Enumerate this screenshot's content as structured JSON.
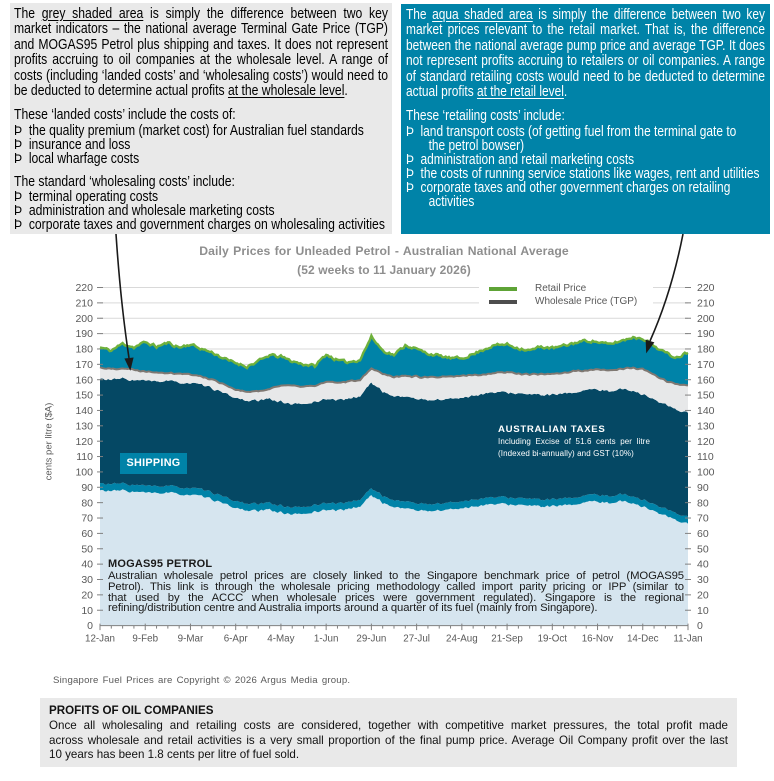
{
  "boxes": {
    "left": {
      "bullet_char": "Þ",
      "lines": [
        {
          "t": "The grey shaded area is simply the difference between two key",
          "j": 1,
          "u": [
            "grey shaded area"
          ]
        },
        {
          "t": "market indicators – the national average Terminal Gate Price (TGP)",
          "j": 1
        },
        {
          "t": "and MOGAS95 Petrol plus shipping and taxes. It does not represent",
          "j": 1
        },
        {
          "t": "profits accruing to oil companies at the wholesale level. A range of",
          "j": 1
        },
        {
          "t": "costs (including ‘landed costs’ and ‘wholesaling costs’) would need to",
          "j": 1
        },
        {
          "t": "be deducted to determine actual profits at the wholesale level.",
          "u": [
            "at the wholesale level"
          ]
        },
        {
          "gap": 1
        },
        {
          "t": "These ‘landed costs’ include the costs of:"
        },
        {
          "t": "the quality premium (market cost) for Australian fuel standards",
          "b": 1
        },
        {
          "t": "insurance and loss",
          "b": 1
        },
        {
          "t": "local wharfage costs",
          "b": 1
        },
        {
          "gap": 1
        },
        {
          "t": "The standard ‘wholesaling costs’ include:"
        },
        {
          "t": "terminal operating costs",
          "b": 1
        },
        {
          "t": "administration and wholesale marketing costs",
          "b": 1
        },
        {
          "t": "corporate taxes and government charges on wholesaling activities",
          "b": 1
        }
      ]
    },
    "right": {
      "bullet_char": "Þ",
      "lines": [
        {
          "t": "The aqua shaded area is simply the difference between two key",
          "j": 1,
          "u": [
            "aqua shaded area"
          ]
        },
        {
          "t": "market prices relevant to the retail market. That is, the difference",
          "j": 1
        },
        {
          "t": "between the national average pump price and average TGP. It does",
          "j": 1
        },
        {
          "t": "not represent profits accruing to retailers or oil companies. A range",
          "j": 1
        },
        {
          "t": "of standard retailing costs would need to be deducted to determine",
          "j": 1
        },
        {
          "t": "actual profits at the retail level.",
          "u": [
            "at the retail level"
          ]
        },
        {
          "gap": 1
        },
        {
          "t": "These ‘retailing costs’ include:"
        },
        {
          "t": "land transport costs (of getting fuel from the terminal gate to",
          "b": 1
        },
        {
          "t": "the petrol bowser)",
          "c": 1
        },
        {
          "t": "administration and retail marketing costs",
          "b": 1
        },
        {
          "t": "the costs of running service stations like wages, rent and utilities",
          "b": 1
        },
        {
          "t": "corporate taxes and other government charges on retailing",
          "b": 1
        },
        {
          "t": "activities",
          "c": 1
        }
      ]
    },
    "bottom": {
      "heading": "PROFITS OF OIL COMPANIES",
      "lines": [
        {
          "t": "Once all wholesaling and retailing costs are considered, together with competitive market pressures, the total profit made",
          "j": 1
        },
        {
          "t": "across wholesale and retail activities is a very small proportion of the final pump price. Average Oil Company profit over the last",
          "j": 1
        },
        {
          "t": "10 years has been 1.8 cents per litre of fuel sold."
        }
      ]
    }
  },
  "chart": {
    "title": "Daily Prices for Unleaded Petrol - Australian National Average",
    "subtitle": "(52 weeks to 11 January 2026)",
    "y_axis_label": "cents per litre ($A)",
    "legend": [
      {
        "label": "Retail Price",
        "color": "#5ea336"
      },
      {
        "label": "Wholesale Price (TGP)",
        "color": "#4d4d4d"
      }
    ],
    "annotations": {
      "shipping": "SHIPPING",
      "taxes_title": "AUSTRALIAN TAXES",
      "taxes_line2": "Including Excise of 51.6 cents per litre",
      "taxes_line3": "(Indexed bi-annually) and GST (10%)",
      "mogas_heading": "MOGAS95 PETROL",
      "mogas_lines": [
        {
          "t": "Australian wholesale petrol prices are closely linked to the Singapore benchmark price of petrol (MOGAS95",
          "j": 1
        },
        {
          "t": "Petrol). This link is through the wholesale pricing methodology called import parity pricing or IPP (similar to",
          "j": 1
        },
        {
          "t": "that used by the ACCC when wholesale prices were government regulated). Singapore is the regional",
          "j": 1
        },
        {
          "t": "refining/distribution centre and Australia imports around a quarter of its fuel (mainly from Singapore)."
        }
      ]
    },
    "copyright": "Singapore Fuel Prices are Copyright © 2026 Argus Media group."
  },
  "chart_data": {
    "type": "area",
    "title": "Daily Prices for Unleaded Petrol - Australian National Average",
    "subtitle": "(52 weeks to 11 January 2026)",
    "ylabel": "cents per litre ($A)",
    "ylim": [
      0,
      220
    ],
    "y_tick_step": 10,
    "x_tick_labels": [
      "12-Jan",
      "9-Feb",
      "9-Mar",
      "6-Apr",
      "4-May",
      "1-Jun",
      "29-Jun",
      "27-Jul",
      "24-Aug",
      "21-Sep",
      "19-Oct",
      "16-Nov",
      "14-Dec",
      "11-Jan"
    ],
    "x_days_per_tick": 28,
    "total_days": 364,
    "grid": true,
    "legend_position": "top-right-inside",
    "excise_cents_per_litre": 51.6,
    "gst_rate": 0.1,
    "shipping_width_cents": 4.5,
    "y_tick_labels": [
      0,
      10,
      20,
      30,
      40,
      50,
      60,
      70,
      80,
      90,
      100,
      110,
      120,
      130,
      140,
      150,
      160,
      170,
      180,
      190,
      200,
      210,
      220
    ],
    "series_weekly": {
      "note": "weekly values, week 0 = 12-Jan through week 52 = 11-Jan, cents per litre; taxes band top = mogas95 + shipping + excise + GST(retail)",
      "retail_price": [
        181,
        179,
        183.5,
        181,
        184.5,
        181.5,
        184,
        181,
        183,
        180,
        177.5,
        173.5,
        171,
        168.5,
        172,
        176,
        175,
        172,
        170,
        169,
        176.5,
        172.5,
        171.5,
        173,
        188,
        179,
        176,
        182.5,
        180,
        177,
        175.5,
        174,
        174,
        176.5,
        180,
        182.5,
        183,
        180.5,
        179,
        181.5,
        180.5,
        182,
        184,
        185.5,
        184.5,
        183,
        185,
        187.5,
        187,
        182,
        177.5,
        174.5,
        178
      ],
      "wholesale_price_tgp": [
        168,
        167,
        167.5,
        166.5,
        165.5,
        165,
        164.5,
        164,
        163.5,
        162,
        160,
        157,
        153.5,
        152,
        152.5,
        154,
        156.5,
        156,
        155.5,
        156,
        158.5,
        158,
        159,
        160,
        167.5,
        164,
        162,
        162.5,
        162,
        161.5,
        161.5,
        162,
        162.5,
        163,
        163.5,
        164.5,
        165,
        164,
        163.5,
        163.5,
        164,
        164.5,
        165.5,
        166,
        166.5,
        166,
        167,
        167.5,
        167,
        163,
        159.5,
        157,
        156.5
      ],
      "mogas95": [
        88,
        87.5,
        88,
        87,
        86.5,
        86,
        86.5,
        85.5,
        85,
        84,
        82,
        79,
        76.5,
        75,
        74.5,
        75.5,
        73.5,
        72.5,
        72.5,
        74,
        75.5,
        75,
        76,
        77.5,
        85,
        80,
        77,
        76.5,
        75,
        74.5,
        75,
        75.5,
        76.5,
        77.5,
        78.5,
        79,
        79,
        78.5,
        78,
        77.5,
        77.5,
        78,
        79,
        80.5,
        80.5,
        80,
        81,
        80,
        77.5,
        74.5,
        71.5,
        68.5,
        66.5
      ]
    },
    "band_colors": {
      "mogas95": "#d6e5ef",
      "shipping": "#0083a8",
      "taxes": "#054864",
      "wholesale_margin_grey": "#e7e8e9",
      "retail_margin_aqua": "#0083a8"
    },
    "line_colors": {
      "retail_price": "#6fb13c",
      "wholesale_price_tgp": "#7f7872"
    }
  }
}
